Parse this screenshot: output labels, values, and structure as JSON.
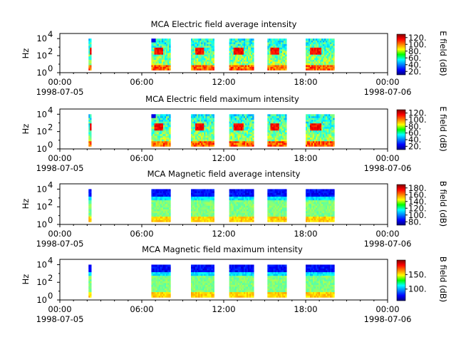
{
  "chart_data": [
    {
      "type": "heatmap",
      "title": "MCA  Electric field average intensity",
      "ylabel": "Hz",
      "y_scale": "log",
      "y_ticks": [
        {
          "base": "10",
          "exp": "0"
        },
        {
          "base": "10",
          "exp": "2"
        },
        {
          "base": "10",
          "exp": "4"
        }
      ],
      "colorbar_label": "E field (dB)",
      "colorbar_ticks": [
        "20.",
        "40.",
        "60.",
        "80.",
        "100.",
        "120."
      ],
      "colorbar_range": [
        10,
        130
      ],
      "kind": "E",
      "data_intervals_hours": [
        [
          2.1,
          2.3
        ],
        [
          6.7,
          8.1
        ],
        [
          9.6,
          11.3
        ],
        [
          12.4,
          14.2
        ],
        [
          15.2,
          16.6
        ],
        [
          18.0,
          20.1
        ]
      ]
    },
    {
      "type": "heatmap",
      "title": "MCA  Electric field maximum intensity",
      "ylabel": "Hz",
      "y_scale": "log",
      "y_ticks": [
        {
          "base": "10",
          "exp": "0"
        },
        {
          "base": "10",
          "exp": "2"
        },
        {
          "base": "10",
          "exp": "4"
        }
      ],
      "colorbar_label": "E field (dB)",
      "colorbar_ticks": [
        "20.",
        "40.",
        "60.",
        "80.",
        "100.",
        "120."
      ],
      "colorbar_range": [
        10,
        130
      ],
      "kind": "E",
      "data_intervals_hours": [
        [
          2.1,
          2.3
        ],
        [
          6.7,
          8.1
        ],
        [
          9.6,
          11.3
        ],
        [
          12.4,
          14.2
        ],
        [
          15.2,
          16.6
        ],
        [
          18.0,
          20.1
        ]
      ]
    },
    {
      "type": "heatmap",
      "title": "MCA  Magnetic field average intensity",
      "ylabel": "Hz",
      "y_scale": "log",
      "y_ticks": [
        {
          "base": "10",
          "exp": "0"
        },
        {
          "base": "10",
          "exp": "2"
        },
        {
          "base": "10",
          "exp": "4"
        }
      ],
      "colorbar_label": "B field (dB)",
      "colorbar_ticks": [
        "80.",
        "100.",
        "120.",
        "140.",
        "160.",
        "180."
      ],
      "colorbar_range": [
        70,
        190
      ],
      "kind": "B",
      "data_intervals_hours": [
        [
          2.1,
          2.3
        ],
        [
          6.7,
          8.1
        ],
        [
          9.6,
          11.3
        ],
        [
          12.4,
          14.2
        ],
        [
          15.2,
          16.6
        ],
        [
          18.0,
          20.1
        ]
      ]
    },
    {
      "type": "heatmap",
      "title": "MCA  Magnetic field maximum intensity",
      "ylabel": "Hz",
      "y_scale": "log",
      "y_ticks": [
        {
          "base": "10",
          "exp": "0"
        },
        {
          "base": "10",
          "exp": "2"
        },
        {
          "base": "10",
          "exp": "4"
        }
      ],
      "colorbar_label": "B field (dB)",
      "colorbar_ticks": [
        "100.",
        "150."
      ],
      "colorbar_range": [
        60,
        200
      ],
      "kind": "B",
      "data_intervals_hours": [
        [
          2.1,
          2.3
        ],
        [
          6.7,
          8.1
        ],
        [
          9.6,
          11.3
        ],
        [
          12.4,
          14.2
        ],
        [
          15.2,
          16.6
        ],
        [
          18.0,
          20.1
        ]
      ]
    }
  ],
  "x_axis": {
    "range_hours": [
      0,
      24
    ],
    "ticks": [
      {
        "hour": 0,
        "label": "00:00",
        "date": "1998-07-05"
      },
      {
        "hour": 6,
        "label": "06:00",
        "date": ""
      },
      {
        "hour": 12,
        "label": "12:00",
        "date": ""
      },
      {
        "hour": 18,
        "label": "18:00",
        "date": ""
      },
      {
        "hour": 24,
        "label": "00:00",
        "date": "1998-07-06"
      }
    ]
  }
}
